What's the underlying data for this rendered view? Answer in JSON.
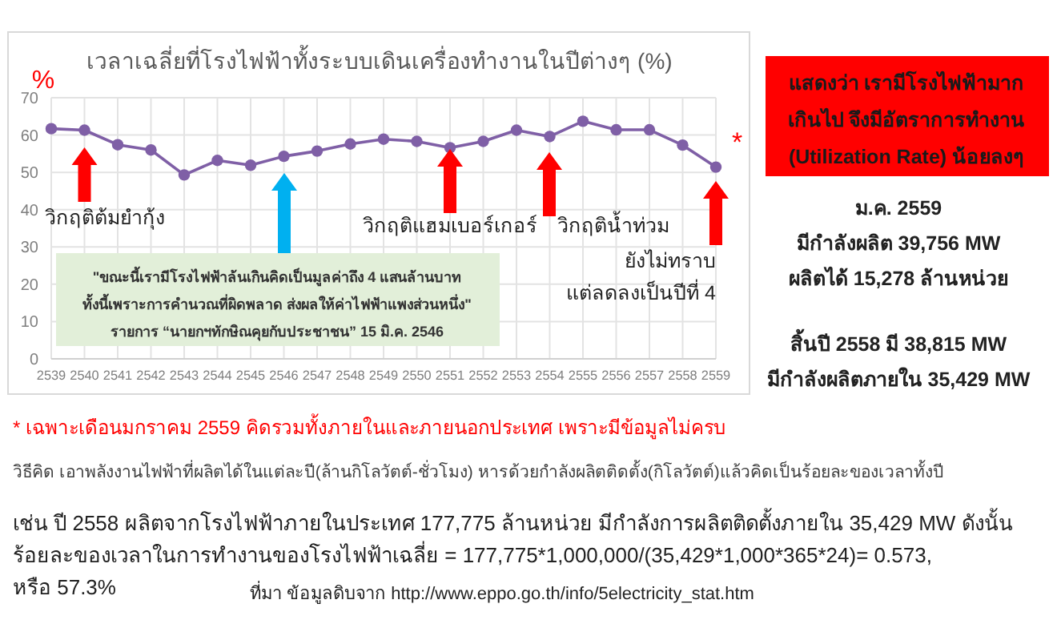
{
  "chart_data": {
    "type": "line",
    "title": "เวลาเฉลี่ยที่โรงไฟฟ้าทั้งระบบเดินเครื่องทำงานในปีต่างๆ (%)",
    "ylabel": "%",
    "categories": [
      "2539",
      "2540",
      "2541",
      "2542",
      "2543",
      "2544",
      "2545",
      "2546",
      "2547",
      "2548",
      "2549",
      "2550",
      "2551",
      "2552",
      "2553",
      "2554",
      "2555",
      "2556",
      "2557",
      "2558",
      "2559"
    ],
    "series": [
      {
        "color": "#7f5fa6",
        "values": [
          61.7,
          61.3,
          57.4,
          56.0,
          49.3,
          53.2,
          51.9,
          54.3,
          55.7,
          57.6,
          58.9,
          58.3,
          56.6,
          58.3,
          61.3,
          59.6,
          63.7,
          61.4,
          61.4,
          57.3,
          51.4
        ]
      }
    ],
    "ylim": [
      0,
      70
    ],
    "yticks": [
      0,
      10,
      20,
      30,
      40,
      50,
      60,
      70
    ],
    "grid": true,
    "marker": "circle",
    "line_style": "solid",
    "annotations": [
      "วิกฤติต้มยำกุ้ง",
      "\"ขณะนี้เรามีโรงไฟฟ้าล้นเกินคิดเป็นมูลค่าถึง 4 แสนล้านบาท\nทั้งนี้เพราะการคำนวณที่ผิดพลาด ส่งผลให้ค่าไฟฟ้าแพงส่วนหนึ่ง\"\nรายการ “นายกฯทักษิณคุยกับประชาชน”  15 มิ.ค. 2546",
      "วิกฤติแฮมเบอร์เกอร์",
      "วิกฤติน้ำท่วม",
      "ยังไม่ทราบ\nแต่ลดลงเป็นปีที่ 4",
      {
        "text": "*",
        "x": "2559",
        "y": 51.4
      },
      "แสดงว่า เรามีโรงไฟฟ้ามาก\nเกินไป จึงมีอัตราการทำงาน\n(Utilization Rate) น้อยลงๆ",
      "ม.ค. 2559\nมีกำลังผลิต 39,756 MW\nผลิตได้ 15,278 ล้านหน่วย",
      "สิ้นปี 2558 มี 38,815 MW\nมีกำลังผลิตภายใน 35,429 MW",
      "* เฉพาะเดือนมกราคม 2559 คิดรวมทั้งภายในและภายนอกประเทศ เพราะมีข้อมูลไม่ครบ",
      "วิธีคิด เอาพลังงานไฟฟ้าที่ผลิตได้ในแต่ละปี(ล้านกิโลวัตต์-ชั่วโมง) หารด้วยกำลังผลิตติดตั้ง(กิโลวัตต์)แล้วคิดเป็นร้อยละของเวลาทั้งปี",
      "เช่น ปี 2558 ผลิตจากโรงไฟฟ้าภายในประเทศ 177,775 ล้านหน่วย มีกำลังการผลิตติดตั้งภายใน 35,429 MW  ดังนั้น\nร้อยละของเวลาในการทำงานของโรงไฟฟ้าเฉลี่ย =  177,775*1,000,000/(35,429*1,000*365*24)= 0.573,\nหรือ 57.3%",
      "ที่มา  ข้อมูลดิบจาก http://www.eppo.go.th/info/5electricity_stat.htm"
    ]
  }
}
